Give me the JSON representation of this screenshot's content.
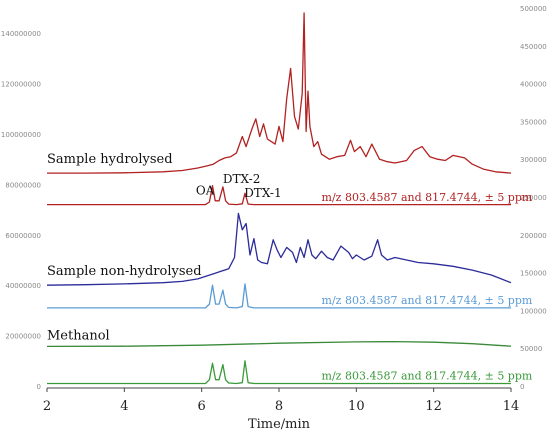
{
  "chart_data": {
    "type": "line",
    "title": "",
    "xlabel": "Time/min",
    "x_ticks": [
      2,
      4,
      6,
      8,
      10,
      12,
      14
    ],
    "xlim": [
      2,
      14
    ],
    "left_axis": {
      "ticks": [
        0,
        20000000,
        40000000,
        60000000,
        80000000,
        100000000,
        120000000,
        140000000
      ],
      "tick_labels": [
        "0",
        "20000000",
        "40000000",
        "60000000",
        "80000000",
        "100000000",
        "120000000",
        "140000000"
      ],
      "ylim": [
        0,
        150000000
      ]
    },
    "right_axis": {
      "ticks": [
        0,
        50000,
        100000,
        150000,
        200000,
        250000,
        300000,
        350000,
        400000,
        450000,
        500000
      ],
      "tick_labels": [
        "0",
        "50000",
        "100000",
        "150000",
        "200000",
        "250000",
        "300000",
        "350000",
        "400000",
        "450000",
        "500000"
      ],
      "ylim": [
        0,
        500000
      ]
    },
    "grid": false,
    "series": [
      {
        "name": "Sample hydrolysed",
        "color": "#b22222",
        "axis": "left",
        "x": [
          2.0,
          3.0,
          4.0,
          5.0,
          5.5,
          5.9,
          6.1,
          6.3,
          6.45,
          6.6,
          6.75,
          6.9,
          7.05,
          7.15,
          7.3,
          7.4,
          7.5,
          7.6,
          7.7,
          7.8,
          7.9,
          8.0,
          8.1,
          8.2,
          8.3,
          8.4,
          8.5,
          8.6,
          8.65,
          8.7,
          8.75,
          8.8,
          8.9,
          9.0,
          9.1,
          9.3,
          9.5,
          9.7,
          9.85,
          9.95,
          10.1,
          10.25,
          10.4,
          10.6,
          10.8,
          11.0,
          11.3,
          11.5,
          11.7,
          11.9,
          12.1,
          12.3,
          12.5,
          12.8,
          13.0,
          13.3,
          13.6,
          14.0
        ],
        "y": [
          84500000,
          84500000,
          84600000,
          85000000,
          85500000,
          86500000,
          87200000,
          88000000,
          89500000,
          90500000,
          91000000,
          92500000,
          99000000,
          95000000,
          102000000,
          106000000,
          99000000,
          104000000,
          98000000,
          97000000,
          96000000,
          103000000,
          97000000,
          114000000,
          126000000,
          107000000,
          102000000,
          116000000,
          148000000,
          101000000,
          117000000,
          103000000,
          95000000,
          97000000,
          92000000,
          90000000,
          91000000,
          91500000,
          97500000,
          93000000,
          95000000,
          91000000,
          96000000,
          90000000,
          89000000,
          88500000,
          89500000,
          93500000,
          95000000,
          91000000,
          90000000,
          89500000,
          91500000,
          90500000,
          88000000,
          86000000,
          85000000,
          84500000
        ]
      },
      {
        "name": "m/z 803.4587 and 817.4744, ± 5 ppm",
        "color": "#b22222",
        "axis": "left",
        "x": [
          2.0,
          5.5,
          6.1,
          6.2,
          6.28,
          6.35,
          6.45,
          6.55,
          6.62,
          6.7,
          6.9,
          7.05,
          7.12,
          7.2,
          7.35,
          10.0,
          14.0
        ],
        "y": [
          72000000,
          72000000,
          72000000,
          73000000,
          79500000,
          73500000,
          73500000,
          79000000,
          73500000,
          72200000,
          72000000,
          72300000,
          76500000,
          72200000,
          72000000,
          72000000,
          72000000
        ]
      },
      {
        "name": "Sample non-hydrolysed",
        "color": "#2b2b9a",
        "axis": "left",
        "x": [
          2.0,
          3.0,
          4.0,
          5.0,
          5.5,
          5.9,
          6.1,
          6.3,
          6.5,
          6.7,
          6.85,
          6.95,
          7.05,
          7.15,
          7.25,
          7.35,
          7.45,
          7.55,
          7.7,
          7.85,
          7.95,
          8.05,
          8.2,
          8.35,
          8.45,
          8.55,
          8.65,
          8.75,
          8.85,
          8.95,
          9.1,
          9.25,
          9.4,
          9.6,
          9.8,
          9.9,
          10.0,
          10.2,
          10.4,
          10.55,
          10.65,
          10.8,
          11.0,
          11.3,
          11.6,
          12.0,
          12.5,
          13.0,
          13.5,
          14.0
        ],
        "y": [
          40000000,
          40200000,
          40500000,
          41000000,
          41500000,
          42500000,
          43500000,
          44500000,
          45500000,
          46500000,
          51000000,
          68500000,
          62000000,
          64500000,
          52000000,
          58500000,
          50000000,
          49000000,
          48500000,
          58000000,
          54000000,
          51000000,
          55000000,
          53000000,
          49000000,
          55000000,
          51000000,
          58000000,
          52000000,
          50500000,
          53500000,
          51000000,
          50000000,
          55500000,
          53000000,
          50500000,
          52000000,
          50000000,
          51500000,
          58000000,
          52000000,
          50000000,
          51000000,
          50000000,
          49000000,
          48500000,
          47500000,
          46000000,
          44000000,
          41000000
        ]
      },
      {
        "name": "m/z 803.4587 and 817.4744, ± 5 ppm",
        "color": "#5b9bd5",
        "axis": "left",
        "x": [
          2.0,
          5.5,
          6.1,
          6.2,
          6.28,
          6.36,
          6.45,
          6.55,
          6.62,
          6.7,
          6.9,
          7.05,
          7.12,
          7.2,
          7.35,
          10.0,
          14.0
        ],
        "y": [
          31000000,
          31000000,
          31000000,
          32500000,
          40000000,
          32500000,
          32500000,
          38000000,
          32500000,
          31200000,
          31000000,
          31500000,
          40500000,
          31500000,
          31000000,
          31000000,
          31000000
        ]
      },
      {
        "name": "Methanol",
        "color": "#3a8a3a",
        "axis": "left",
        "x": [
          2.0,
          4.0,
          6.0,
          8.0,
          10.0,
          11.0,
          12.0,
          13.0,
          14.0
        ],
        "y": [
          15700000,
          15800000,
          16200000,
          17000000,
          17500000,
          17600000,
          17400000,
          16800000,
          15800000
        ]
      },
      {
        "name": "m/z 803.4587 and 817.4744, ± 5 ppm",
        "color": "#3a9a3a",
        "axis": "left",
        "x": [
          2.0,
          5.5,
          6.1,
          6.2,
          6.28,
          6.36,
          6.45,
          6.55,
          6.62,
          6.7,
          6.9,
          7.05,
          7.12,
          7.2,
          7.35,
          10.0,
          14.0
        ],
        "y": [
          1000000,
          1000000,
          1000000,
          2500000,
          9000000,
          2500000,
          2500000,
          8500000,
          2500000,
          1200000,
          1000000,
          1300000,
          10000000,
          1300000,
          1000000,
          1000000,
          1000000
        ]
      }
    ],
    "annotations": [
      {
        "text": "Sample hydrolysed",
        "x": 2.0,
        "y": 88500000,
        "color": "#111111",
        "class": "trace-label"
      },
      {
        "text": "OA",
        "x": 5.85,
        "y": 76000000,
        "color": "#111111",
        "class": "peak-label"
      },
      {
        "text": "DTX-2",
        "x": 6.55,
        "y": 80500000,
        "color": "#111111",
        "class": "peak-label"
      },
      {
        "text": "DTX-1",
        "x": 7.1,
        "y": 75000000,
        "color": "#111111",
        "class": "peak-label"
      },
      {
        "text": "m/z 803.4587 and 817.4744, ± 5 ppm",
        "x": 9.1,
        "y": 73500000,
        "color": "#b22222",
        "class": "mz-label"
      },
      {
        "text": "Sample non-hydrolysed",
        "x": 2.0,
        "y": 44000000,
        "color": "#111111",
        "class": "trace-label"
      },
      {
        "text": "m/z 803.4587 and 817.4744, ± 5 ppm",
        "x": 9.1,
        "y": 32500000,
        "color": "#5b9bd5",
        "class": "mz-label"
      },
      {
        "text": "Methanol",
        "x": 2.0,
        "y": 18500000,
        "color": "#111111",
        "class": "trace-label"
      },
      {
        "text": "m/z 803.4587 and 817.4744, ± 5 ppm",
        "x": 9.1,
        "y": 2500000,
        "color": "#3a9a3a",
        "class": "mz-label"
      }
    ]
  }
}
